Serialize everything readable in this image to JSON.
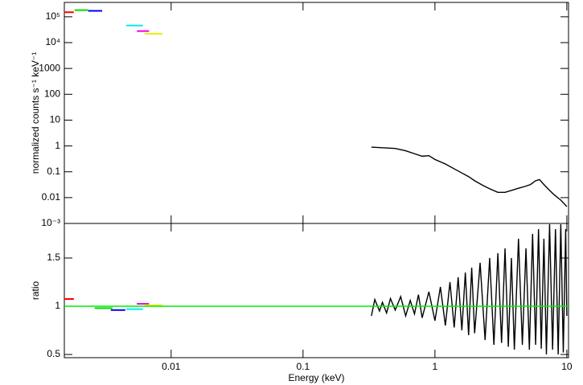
{
  "chart_data": [
    {
      "type": "line",
      "y_label": "normalized counts s⁻¹ keV⁻¹",
      "xlog": true,
      "ylog": true,
      "xlim": [
        0.00155,
        10.3
      ],
      "ylim": [
        0.001,
        360000
      ],
      "xticks": [
        0.01,
        0.1,
        1,
        10
      ],
      "show_x_tick_labels": false,
      "yticks": [
        {
          "value": 100000,
          "label": "10⁵"
        },
        {
          "value": 10000,
          "label": "10⁴"
        },
        {
          "value": 1000,
          "label": "1000"
        },
        100,
        10,
        1,
        0.1,
        0.01,
        {
          "value": 0.001,
          "label": "10⁻³"
        }
      ],
      "series": [
        {
          "color": "#ff0000",
          "x_low": [
            0.00155
          ],
          "x_high": [
            0.00183
          ],
          "values": [
            150000
          ]
        },
        {
          "color": "#00dd00",
          "x_low": [
            0.00185
          ],
          "x_high": [
            0.00235
          ],
          "values": [
            180000
          ]
        },
        {
          "color": "#0000ee",
          "x_low": [
            0.00235
          ],
          "x_high": [
            0.003
          ],
          "values": [
            170000
          ]
        },
        {
          "color": "#00eeee",
          "x_low": [
            0.00456
          ],
          "x_high": [
            0.0061
          ],
          "values": [
            46000
          ]
        },
        {
          "color": "#ee00ee",
          "x_low": [
            0.0055
          ],
          "x_high": [
            0.0068
          ],
          "values": [
            28000
          ]
        },
        {
          "color": "#eeee00",
          "x_low": [
            0.0063
          ],
          "x_high": [
            0.0086
          ],
          "values": [
            22000
          ]
        },
        {
          "color": "#000000",
          "x": [
            0.33,
            0.4,
            0.5,
            0.6,
            0.7,
            0.8,
            0.9,
            1.0,
            1.2,
            1.4,
            1.6,
            1.8,
            2.0,
            2.3,
            2.6,
            3.0,
            3.4,
            3.8,
            4.3,
            4.8,
            5.3,
            5.8,
            6.2,
            6.6,
            7.2,
            8.0,
            9.0,
            10.0
          ],
          "values": [
            0.9,
            0.85,
            0.8,
            0.65,
            0.5,
            0.4,
            0.42,
            0.3,
            0.2,
            0.13,
            0.09,
            0.065,
            0.045,
            0.03,
            0.022,
            0.016,
            0.016,
            0.019,
            0.023,
            0.027,
            0.032,
            0.045,
            0.05,
            0.035,
            0.022,
            0.013,
            0.008,
            0.0045
          ]
        }
      ]
    },
    {
      "type": "line",
      "y_label": "ratio",
      "x_label": "Energy (keV)",
      "xlog": true,
      "ylog": false,
      "xlim": [
        0.00155,
        10.3
      ],
      "ylim": [
        0.467,
        1.858
      ],
      "xticks": [
        0.01,
        0.1,
        1,
        10
      ],
      "show_x_tick_labels": true,
      "yticks": [
        0.5,
        1,
        1.5
      ],
      "reference_line": 1,
      "reference_color": "#00ee00",
      "series": [
        {
          "color": "#ff0000",
          "x_low": [
            0.00155
          ],
          "x_high": [
            0.00183
          ],
          "values": [
            1.075
          ]
        },
        {
          "color": "#00dd00",
          "x_low": [
            0.00263
          ],
          "x_high": [
            0.00359
          ],
          "values": [
            0.98
          ]
        },
        {
          "color": "#0000ee",
          "x_low": [
            0.00349
          ],
          "x_high": [
            0.00449
          ],
          "values": [
            0.96
          ]
        },
        {
          "color": "#00eeee",
          "x_low": [
            0.00456
          ],
          "x_high": [
            0.0061
          ],
          "values": [
            0.97
          ]
        },
        {
          "color": "#ee00ee",
          "x_low": [
            0.0055
          ],
          "x_high": [
            0.0068
          ],
          "values": [
            1.025
          ]
        },
        {
          "color": "#eeee00",
          "x_low": [
            0.0063
          ],
          "x_high": [
            0.0086
          ],
          "values": [
            1.01
          ]
        },
        {
          "color": "#000000",
          "x": [
            0.33,
            0.35,
            0.38,
            0.4,
            0.43,
            0.46,
            0.5,
            0.55,
            0.6,
            0.65,
            0.7,
            0.75,
            0.8,
            0.9,
            1.0,
            1.1,
            1.2,
            1.3,
            1.4,
            1.5,
            1.6,
            1.7,
            1.8,
            1.9,
            2.0,
            2.2,
            2.4,
            2.6,
            2.8,
            3.0,
            3.2,
            3.4,
            3.6,
            3.8,
            4.0,
            4.3,
            4.6,
            4.9,
            5.2,
            5.5,
            5.8,
            6.1,
            6.4,
            6.7,
            7.0,
            7.4,
            7.8,
            8.2,
            8.6,
            9.0,
            9.4,
            9.8,
            10.0
          ],
          "values": [
            0.9,
            1.07,
            0.95,
            1.04,
            0.93,
            1.08,
            0.96,
            1.1,
            0.9,
            1.06,
            0.92,
            1.12,
            0.88,
            1.15,
            0.85,
            1.2,
            0.8,
            1.25,
            0.78,
            1.3,
            0.75,
            1.35,
            0.7,
            1.4,
            0.72,
            1.45,
            0.65,
            1.5,
            0.6,
            1.55,
            0.62,
            1.6,
            0.58,
            1.5,
            0.55,
            1.7,
            0.6,
            1.6,
            0.55,
            1.75,
            0.6,
            1.8,
            0.56,
            1.7,
            0.5,
            1.85,
            0.55,
            1.8,
            0.5,
            1.85,
            0.52,
            1.8,
            0.9
          ]
        }
      ]
    }
  ]
}
